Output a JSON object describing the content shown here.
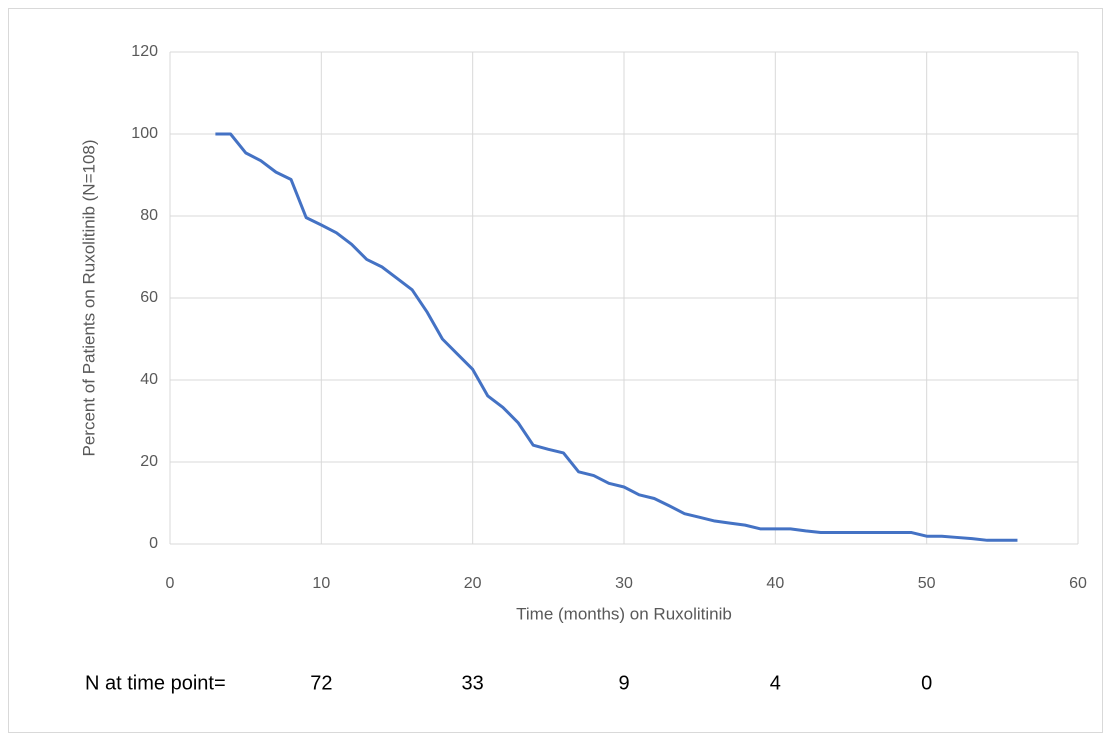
{
  "chart_data": {
    "type": "line",
    "x_label": "Time (months) on Ruxolitinib",
    "y_label": "Percent of Patients on Ruxolitinib (N=108)",
    "x": [
      3,
      4,
      5,
      6,
      7,
      8,
      9,
      10,
      11,
      12,
      13,
      14,
      15,
      16,
      17,
      18,
      19,
      20,
      21,
      22,
      23,
      24,
      25,
      26,
      27,
      28,
      29,
      30,
      31,
      32,
      33,
      34,
      35,
      36,
      37,
      38,
      39,
      40,
      41,
      42,
      43,
      44,
      45,
      46,
      47,
      48,
      49,
      50,
      51,
      52,
      53,
      54,
      55,
      56
    ],
    "series": [
      {
        "name": "Ruxolitinib",
        "color": "#4472c4",
        "values": [
          100,
          100,
          95.4,
          93.5,
          90.7,
          88.9,
          79.6,
          77.8,
          75.9,
          73.1,
          69.4,
          67.6,
          64.8,
          62,
          56.5,
          50,
          46.3,
          42.6,
          36.1,
          33.3,
          29.6,
          24.1,
          23.1,
          22.2,
          17.6,
          16.7,
          14.8,
          13.9,
          12,
          11.1,
          9.3,
          7.4,
          6.5,
          5.6,
          5.1,
          4.6,
          3.7,
          3.7,
          3.7,
          3.2,
          2.8,
          2.8,
          2.8,
          2.8,
          2.8,
          2.8,
          2.8,
          1.9,
          1.9,
          1.6,
          1.3,
          0.9,
          0.9,
          0.9
        ]
      }
    ],
    "xlim": [
      0,
      60
    ],
    "xticks": [
      0,
      10,
      20,
      30,
      40,
      50,
      60
    ],
    "ylim": [
      0,
      120
    ],
    "yticks": [
      0,
      20,
      40,
      60,
      80,
      100,
      120
    ],
    "grid": true,
    "risk_table": {
      "label": "N at time point=",
      "values": [
        72,
        33,
        9,
        4,
        0
      ]
    }
  }
}
